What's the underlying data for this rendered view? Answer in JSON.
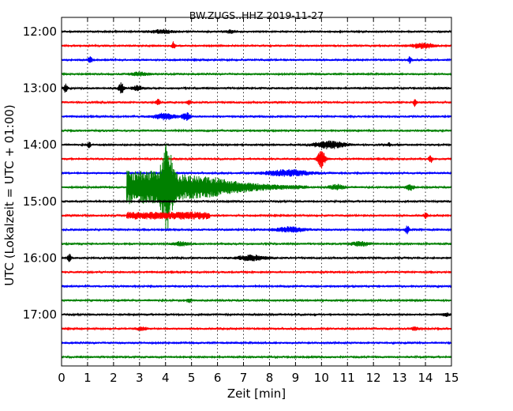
{
  "chart_data": {
    "type": "line",
    "title": "BW.ZUGS..HHZ 2019-11-27",
    "xlabel": "Zeit  [min]",
    "ylabel": "UTC (Lokalzeit = UTC + 01:00)",
    "xlim": [
      0,
      15
    ],
    "x_ticks": [
      0,
      1,
      2,
      3,
      4,
      5,
      6,
      7,
      8,
      9,
      10,
      11,
      12,
      13,
      14,
      15
    ],
    "x_tick_labels": [
      "0",
      "1",
      "2",
      "3",
      "4",
      "5",
      "6",
      "7",
      "8",
      "9",
      "10",
      "11",
      "12",
      "13",
      "14",
      "15"
    ],
    "y_tick_labels": [
      "12:00",
      "13:00",
      "14:00",
      "15:00",
      "16:00",
      "17:00"
    ],
    "trace_interval_min": 15,
    "grid": "vertical dotted",
    "legend": "none",
    "colors": [
      "#000000",
      "#ff0000",
      "#0000ff",
      "#008000"
    ],
    "traces": [
      {
        "start": "12:00",
        "color": "#000000",
        "events": [
          {
            "t": 3.9,
            "amp": 0.35,
            "dur": 0.6
          },
          {
            "t": 6.5,
            "amp": 0.25,
            "dur": 0.3
          }
        ]
      },
      {
        "start": "12:15",
        "color": "#ff0000",
        "events": [
          {
            "t": 4.3,
            "amp": 0.8,
            "dur": 0.08
          },
          {
            "t": 13.9,
            "amp": 0.5,
            "dur": 0.6
          }
        ]
      },
      {
        "start": "12:30",
        "color": "#0000ff",
        "events": [
          {
            "t": 1.1,
            "amp": 0.7,
            "dur": 0.1
          },
          {
            "t": 13.4,
            "amp": 0.6,
            "dur": 0.1
          }
        ]
      },
      {
        "start": "12:45",
        "color": "#008000",
        "events": [
          {
            "t": 3.0,
            "amp": 0.3,
            "dur": 0.5
          }
        ]
      },
      {
        "start": "13:00",
        "color": "#000000",
        "events": [
          {
            "t": 0.15,
            "amp": 0.8,
            "dur": 0.1
          },
          {
            "t": 2.3,
            "amp": 1.1,
            "dur": 0.15
          },
          {
            "t": 2.9,
            "amp": 0.4,
            "dur": 0.3
          }
        ]
      },
      {
        "start": "13:15",
        "color": "#ff0000",
        "events": [
          {
            "t": 3.7,
            "amp": 0.7,
            "dur": 0.1
          },
          {
            "t": 4.9,
            "amp": 0.4,
            "dur": 0.1
          },
          {
            "t": 13.6,
            "amp": 0.9,
            "dur": 0.08
          }
        ]
      },
      {
        "start": "13:30",
        "color": "#0000ff",
        "events": [
          {
            "t": 4.0,
            "amp": 0.6,
            "dur": 0.6
          },
          {
            "t": 4.8,
            "amp": 0.8,
            "dur": 0.2
          }
        ]
      },
      {
        "start": "13:45",
        "color": "#008000",
        "events": []
      },
      {
        "start": "14:00",
        "color": "#000000",
        "events": [
          {
            "t": 1.05,
            "amp": 0.6,
            "dur": 0.1
          },
          {
            "t": 10.3,
            "amp": 0.7,
            "dur": 0.8
          },
          {
            "t": 12.6,
            "amp": 0.4,
            "dur": 0.1
          }
        ]
      },
      {
        "start": "14:15",
        "color": "#ff0000",
        "events": [
          {
            "t": 10.0,
            "amp": 1.8,
            "dur": 0.2
          },
          {
            "t": 14.2,
            "amp": 0.7,
            "dur": 0.1
          }
        ]
      },
      {
        "start": "14:30",
        "color": "#0000ff",
        "events": [
          {
            "t": 8.7,
            "amp": 0.6,
            "dur": 1.2
          }
        ]
      },
      {
        "start": "14:45",
        "color": "#008000",
        "events": [
          {
            "t": 2.5,
            "amp": 3.3,
            "dur": 7.0,
            "onset": true
          },
          {
            "t": 4.05,
            "amp": 7.5,
            "dur": 0.3
          },
          {
            "t": 10.6,
            "amp": 0.5,
            "dur": 0.4
          },
          {
            "t": 13.4,
            "amp": 0.6,
            "dur": 0.2
          }
        ]
      },
      {
        "start": "15:00",
        "color": "#000000",
        "events": []
      },
      {
        "start": "15:15",
        "color": "#ff0000",
        "events": [
          {
            "t": 2.5,
            "amp": 0.6,
            "dur": 3.2,
            "box": true
          },
          {
            "t": 14.0,
            "amp": 0.5,
            "dur": 0.1
          }
        ]
      },
      {
        "start": "15:30",
        "color": "#0000ff",
        "events": [
          {
            "t": 8.8,
            "amp": 0.5,
            "dur": 0.8
          },
          {
            "t": 13.3,
            "amp": 0.8,
            "dur": 0.1
          }
        ]
      },
      {
        "start": "15:45",
        "color": "#008000",
        "events": [
          {
            "t": 4.6,
            "amp": 0.4,
            "dur": 0.4
          },
          {
            "t": 11.5,
            "amp": 0.4,
            "dur": 0.5
          }
        ]
      },
      {
        "start": "16:00",
        "color": "#000000",
        "events": [
          {
            "t": 0.3,
            "amp": 0.7,
            "dur": 0.1
          },
          {
            "t": 7.3,
            "amp": 0.5,
            "dur": 0.8
          }
        ]
      },
      {
        "start": "16:15",
        "color": "#ff0000",
        "events": []
      },
      {
        "start": "16:30",
        "color": "#0000ff",
        "events": []
      },
      {
        "start": "16:45",
        "color": "#008000",
        "events": [
          {
            "t": 4.9,
            "amp": 0.4,
            "dur": 0.1
          }
        ]
      },
      {
        "start": "17:00",
        "color": "#000000",
        "events": [
          {
            "t": 14.8,
            "amp": 0.3,
            "dur": 0.2
          }
        ]
      },
      {
        "start": "17:15",
        "color": "#ff0000",
        "events": [
          {
            "t": 3.1,
            "amp": 0.3,
            "dur": 0.3
          },
          {
            "t": 13.6,
            "amp": 0.3,
            "dur": 0.2
          }
        ]
      },
      {
        "start": "17:30",
        "color": "#0000ff",
        "events": []
      },
      {
        "start": "17:45",
        "color": "#008000",
        "events": []
      }
    ]
  }
}
